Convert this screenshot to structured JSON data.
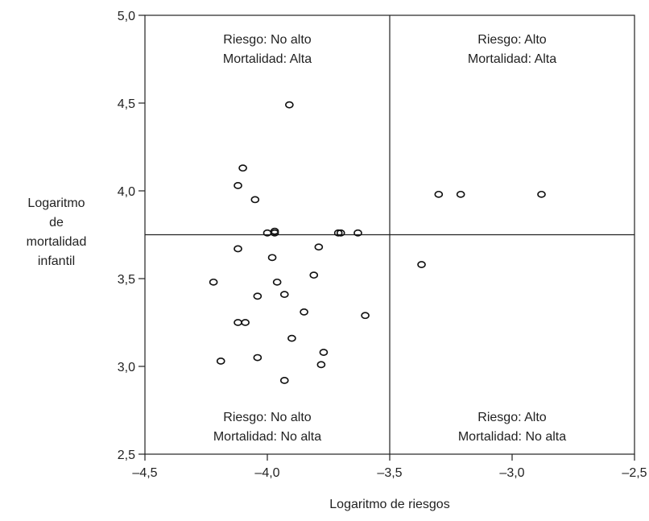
{
  "chart_data": {
    "type": "scatter",
    "title": "",
    "xlabel": "Logaritmo de riesgos",
    "ylabel_lines": [
      "Logaritmo",
      "de",
      "mortalidad",
      "infantil"
    ],
    "xlim": [
      -4.5,
      -2.5
    ],
    "ylim": [
      2.5,
      5.0
    ],
    "x_ticks": [
      -4.5,
      -4.0,
      -3.5,
      -3.0,
      -2.5
    ],
    "y_ticks": [
      2.5,
      3.0,
      3.5,
      4.0,
      4.5,
      5.0
    ],
    "x_tick_labels": [
      "–4,5",
      "–4,0",
      "–3,5",
      "–3,0",
      "–2,5"
    ],
    "y_tick_labels": [
      "2,5",
      "3,0",
      "3,5",
      "4,0",
      "4,5",
      "5,0"
    ],
    "reference_lines": {
      "x": -3.5,
      "y": 3.75
    },
    "grid": false,
    "quadrant_labels": {
      "top_left": [
        "Riesgo: No alto",
        "Mortalidad: Alta"
      ],
      "top_right": [
        "Riesgo: Alto",
        "Mortalidad: Alta"
      ],
      "bottom_left": [
        "Riesgo: No alto",
        "Mortalidad: No alta"
      ],
      "bottom_right": [
        "Riesgo: Alto",
        "Mortalidad: No alta"
      ]
    },
    "points": [
      {
        "x": -3.91,
        "y": 4.49
      },
      {
        "x": -4.1,
        "y": 4.13
      },
      {
        "x": -4.12,
        "y": 4.03
      },
      {
        "x": -4.05,
        "y": 3.95
      },
      {
        "x": -4.0,
        "y": 3.76
      },
      {
        "x": -3.97,
        "y": 3.77
      },
      {
        "x": -3.97,
        "y": 3.76
      },
      {
        "x": -3.71,
        "y": 3.76
      },
      {
        "x": -3.7,
        "y": 3.76
      },
      {
        "x": -3.63,
        "y": 3.76
      },
      {
        "x": -4.12,
        "y": 3.67
      },
      {
        "x": -3.79,
        "y": 3.68
      },
      {
        "x": -3.98,
        "y": 3.62
      },
      {
        "x": -3.81,
        "y": 3.52
      },
      {
        "x": -4.22,
        "y": 3.48
      },
      {
        "x": -3.96,
        "y": 3.48
      },
      {
        "x": -4.04,
        "y": 3.4
      },
      {
        "x": -3.93,
        "y": 3.41
      },
      {
        "x": -3.85,
        "y": 3.31
      },
      {
        "x": -3.6,
        "y": 3.29
      },
      {
        "x": -4.12,
        "y": 3.25
      },
      {
        "x": -4.09,
        "y": 3.25
      },
      {
        "x": -3.9,
        "y": 3.16
      },
      {
        "x": -3.77,
        "y": 3.08
      },
      {
        "x": -4.04,
        "y": 3.05
      },
      {
        "x": -4.19,
        "y": 3.03
      },
      {
        "x": -3.78,
        "y": 3.01
      },
      {
        "x": -3.93,
        "y": 2.92
      },
      {
        "x": -3.37,
        "y": 3.58
      },
      {
        "x": -3.3,
        "y": 3.98
      },
      {
        "x": -3.21,
        "y": 3.98
      },
      {
        "x": -2.88,
        "y": 3.98
      }
    ]
  }
}
